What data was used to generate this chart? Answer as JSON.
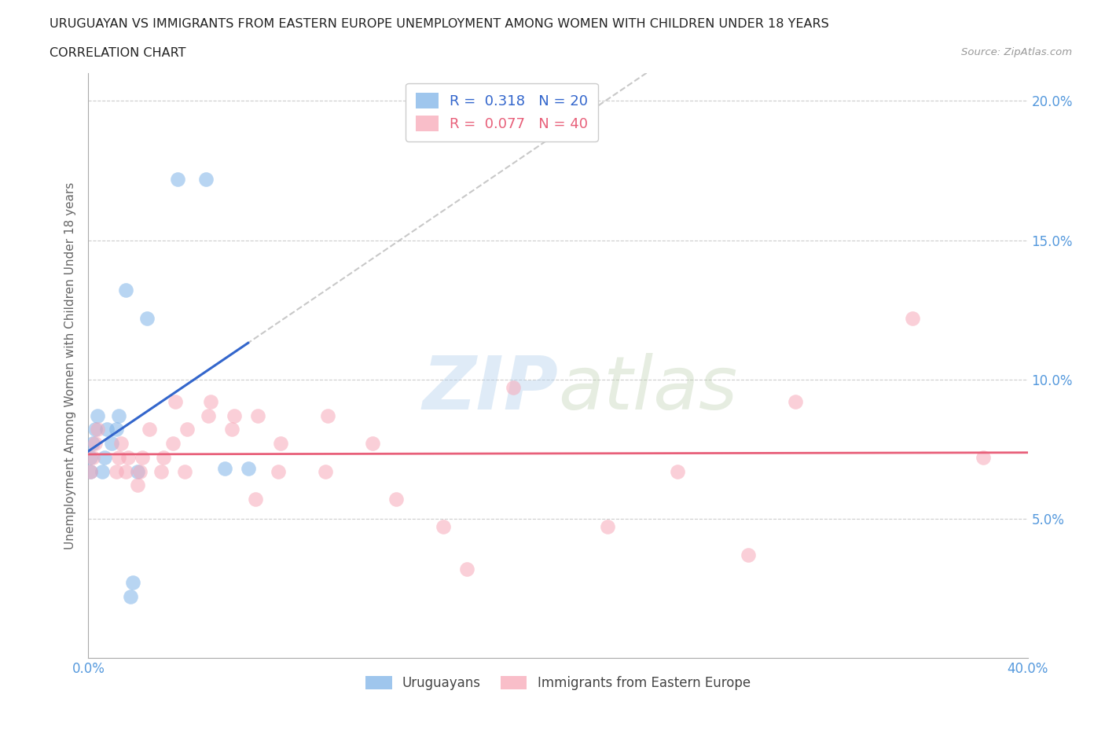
{
  "title_line1": "URUGUAYAN VS IMMIGRANTS FROM EASTERN EUROPE UNEMPLOYMENT AMONG WOMEN WITH CHILDREN UNDER 18 YEARS",
  "title_line2": "CORRELATION CHART",
  "source": "Source: ZipAtlas.com",
  "watermark_zip": "ZIP",
  "watermark_atlas": "atlas",
  "xlabel": "",
  "ylabel": "Unemployment Among Women with Children Under 18 years",
  "xlim": [
    0.0,
    0.4
  ],
  "ylim": [
    0.0,
    0.21
  ],
  "xticks": [
    0.0,
    0.1,
    0.2,
    0.3,
    0.4
  ],
  "xtick_labels": [
    "0.0%",
    "",
    "",
    "",
    "40.0%"
  ],
  "yticks": [
    0.05,
    0.1,
    0.15,
    0.2
  ],
  "ytick_labels": [
    "5.0%",
    "10.0%",
    "15.0%",
    "20.0%"
  ],
  "blue_R": 0.318,
  "blue_N": 20,
  "pink_R": 0.077,
  "pink_N": 40,
  "blue_color": "#7FB3E8",
  "pink_color": "#F7A8B8",
  "blue_line_color": "#3366CC",
  "pink_line_color": "#E8607A",
  "dash_line_color": "#BBBBBB",
  "grid_color": "#CCCCCC",
  "background_color": "#FFFFFF",
  "title_color": "#222222",
  "axis_label_color": "#666666",
  "right_tick_color": "#5599DD",
  "bottom_tick_color": "#5599DD",
  "blue_points_x": [
    0.001,
    0.001,
    0.002,
    0.003,
    0.004,
    0.006,
    0.007,
    0.008,
    0.01,
    0.012,
    0.013,
    0.016,
    0.018,
    0.019,
    0.021,
    0.025,
    0.038,
    0.05,
    0.058,
    0.068
  ],
  "blue_points_y": [
    0.067,
    0.072,
    0.077,
    0.082,
    0.087,
    0.067,
    0.072,
    0.082,
    0.077,
    0.082,
    0.087,
    0.132,
    0.022,
    0.027,
    0.067,
    0.122,
    0.172,
    0.172,
    0.068,
    0.068
  ],
  "pink_points_x": [
    0.001,
    0.002,
    0.003,
    0.004,
    0.012,
    0.013,
    0.014,
    0.016,
    0.017,
    0.021,
    0.022,
    0.023,
    0.026,
    0.031,
    0.032,
    0.036,
    0.037,
    0.041,
    0.042,
    0.051,
    0.052,
    0.061,
    0.062,
    0.071,
    0.072,
    0.081,
    0.082,
    0.101,
    0.102,
    0.121,
    0.131,
    0.151,
    0.161,
    0.181,
    0.221,
    0.251,
    0.281,
    0.301,
    0.351,
    0.381
  ],
  "pink_points_y": [
    0.067,
    0.072,
    0.077,
    0.082,
    0.067,
    0.072,
    0.077,
    0.067,
    0.072,
    0.062,
    0.067,
    0.072,
    0.082,
    0.067,
    0.072,
    0.077,
    0.092,
    0.067,
    0.082,
    0.087,
    0.092,
    0.082,
    0.087,
    0.057,
    0.087,
    0.067,
    0.077,
    0.067,
    0.087,
    0.077,
    0.057,
    0.047,
    0.032,
    0.097,
    0.047,
    0.067,
    0.037,
    0.092,
    0.122,
    0.072
  ],
  "legend_label_blue": "Uruguayans",
  "legend_label_pink": "Immigrants from Eastern Europe",
  "marker_size": 180
}
